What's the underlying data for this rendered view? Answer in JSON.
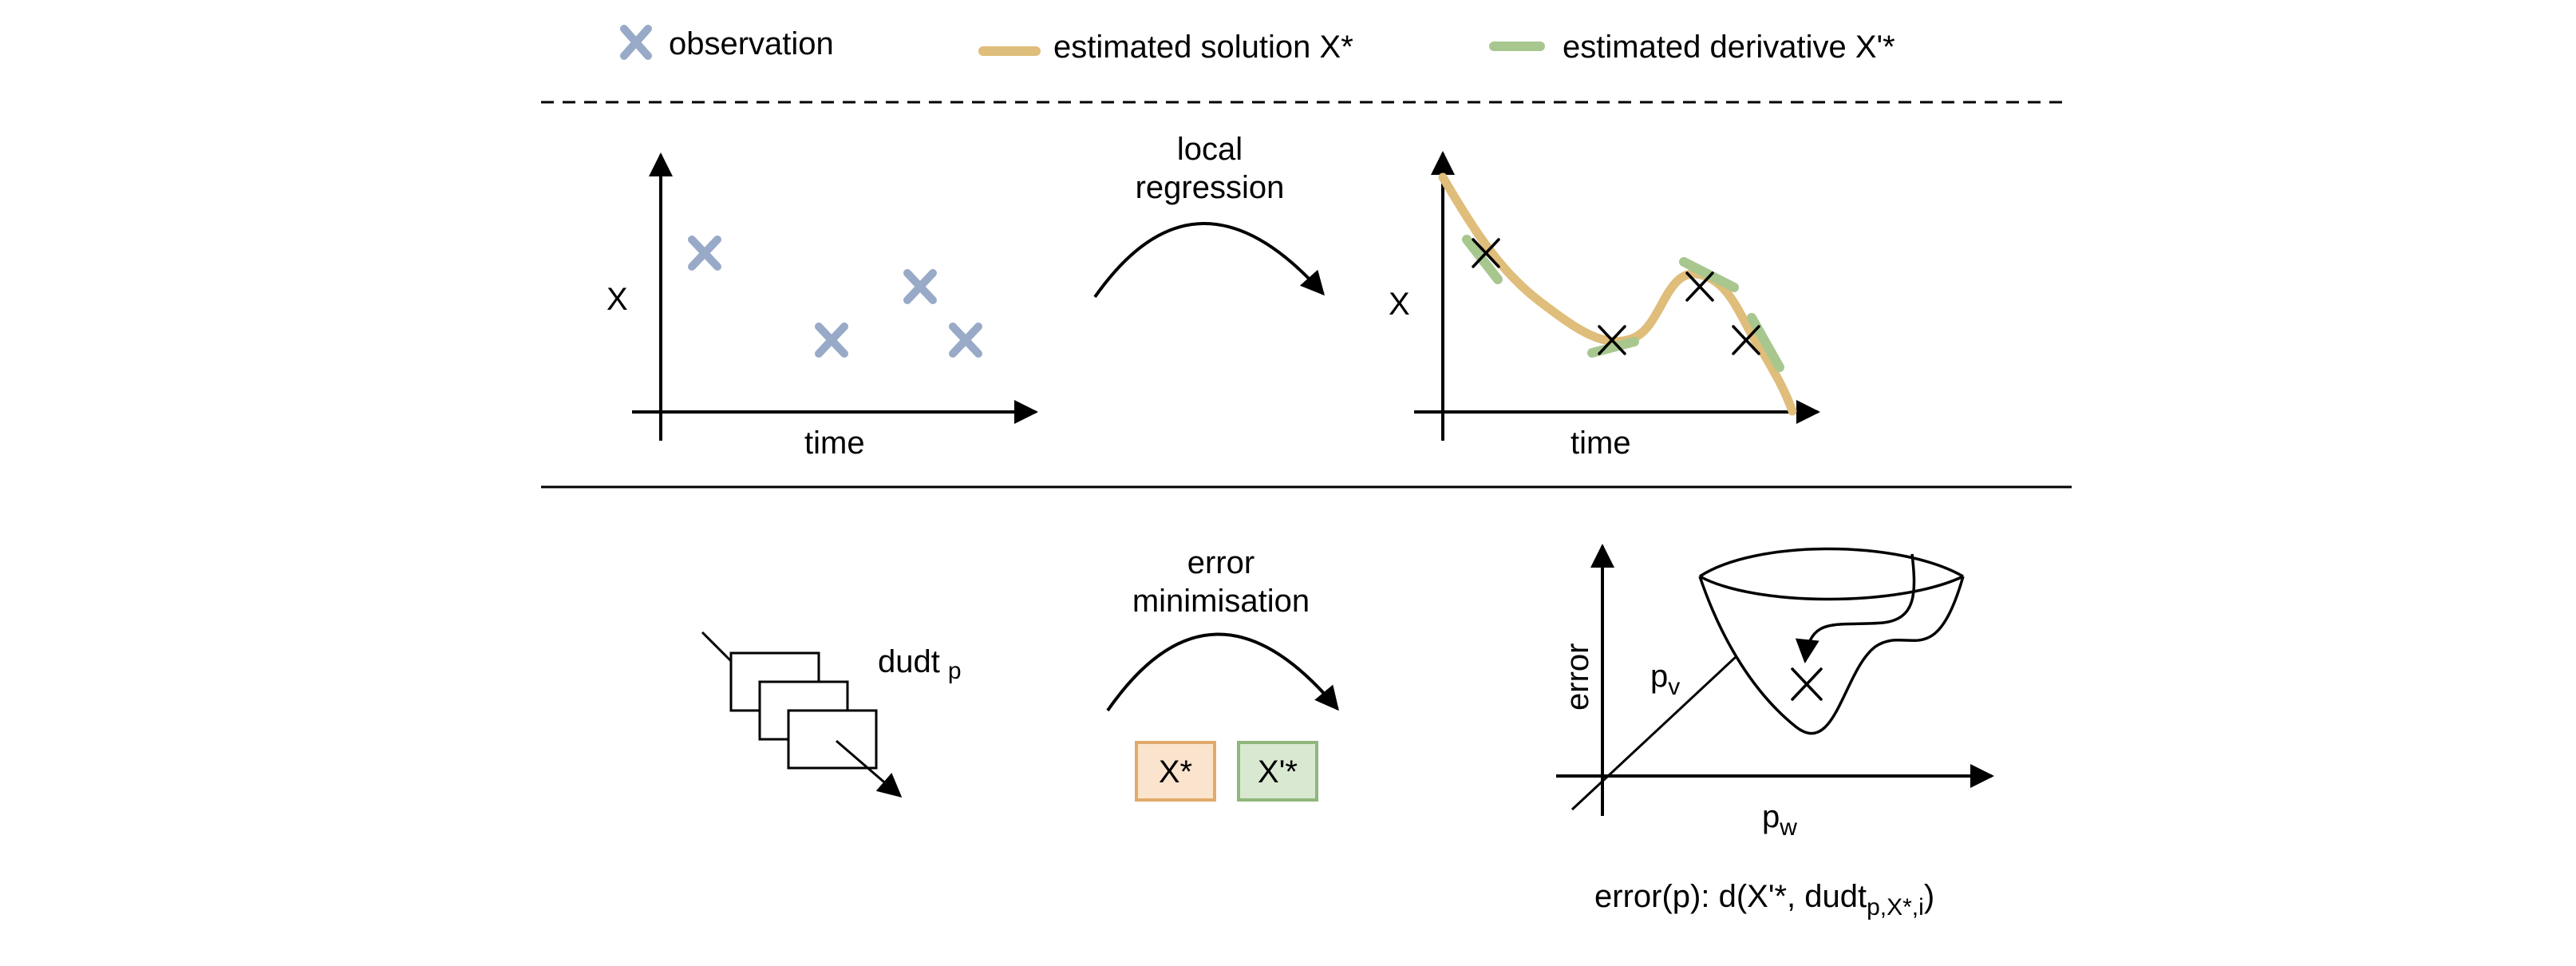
{
  "legend": {
    "observation": "observation",
    "solution": "estimated solution X*",
    "derivative": "estimated derivative X'*"
  },
  "top_left": {
    "ylabel": "X",
    "xlabel": "time"
  },
  "top_middle": {
    "line1": "local",
    "line2": "regression"
  },
  "top_right": {
    "ylabel": "X",
    "xlabel": "time"
  },
  "bottom_left": {
    "label": "dudt",
    "label_sub": "p"
  },
  "bottom_middle": {
    "line1": "error",
    "line2": "minimisation",
    "box_left": "X*",
    "box_right": "X'*"
  },
  "bottom_right": {
    "ylabel": "error",
    "pv": "p",
    "pv_sub": "v",
    "pw": "p",
    "pw_sub": "w",
    "formula_a": "error(p): d(X'*, dudt",
    "formula_sub": "p,X*,i",
    "formula_b": ")"
  },
  "colors": {
    "observation": "#98aac8",
    "solution": "#dfbd7a",
    "derivative": "#a7c78f",
    "box_left_fill": "#fbe4cd",
    "box_left_stroke": "#e0ab6a",
    "box_right_fill": "#d9e8d0",
    "box_right_stroke": "#8fb77a"
  }
}
